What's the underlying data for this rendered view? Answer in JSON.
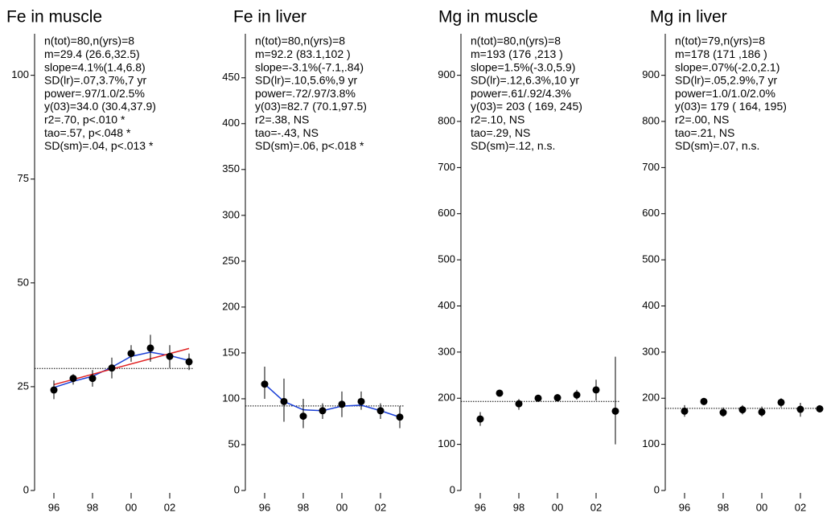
{
  "chart_data": [
    {
      "type": "scatter",
      "title": "Fe in muscle",
      "stats": [
        "n(tot)=80,n(yrs)=8",
        "m=29.4 (26.6,32.5)",
        "slope=4.1%(1.4,6.8)",
        "SD(lr)=.07,3.7%,7 yr",
        "power=.97/1.0/2.5%",
        "y(03)=34.0 (30.4,37.9)",
        "r2=.70, p<.010 *",
        "tao=.57, p<.048 *",
        "SD(sm)=.04, p<.013 *"
      ],
      "x": [
        1996,
        1997,
        1998,
        1999,
        2000,
        2001,
        2002,
        2003
      ],
      "means": [
        24.2,
        27,
        27,
        29.5,
        33,
        34.3,
        32.3,
        31
      ],
      "ci_low": [
        22,
        25.5,
        25,
        27,
        31,
        31,
        29.5,
        29
      ],
      "ci_high": [
        26.5,
        28,
        29,
        32,
        35,
        37.5,
        35,
        33
      ],
      "smooth": [
        24.8,
        26.3,
        27.5,
        29.7,
        32.3,
        33.3,
        32.5,
        31.3
      ],
      "trend_x": [
        1996,
        2003
      ],
      "trend": [
        25.5,
        34.2
      ],
      "reference": 29.4,
      "xlim": [
        1995,
        2003.2
      ],
      "xticks": [
        {
          "value": 1996,
          "label": "96"
        },
        {
          "value": 1998,
          "label": "98"
        },
        {
          "value": 2000,
          "label": "00"
        },
        {
          "value": 2002,
          "label": "02"
        }
      ],
      "ylim": [
        0,
        110
      ],
      "yticks": [
        0,
        25,
        50,
        75,
        100
      ],
      "colors": {
        "mean": "#000000",
        "smooth": "#1a3fd6",
        "trend": "#e02020",
        "reference": "#000000"
      }
    },
    {
      "type": "scatter",
      "title": "Fe in liver",
      "stats": [
        "n(tot)=80,n(yrs)=8",
        "m=92.2 (83.1,102 )",
        "slope=-3.1%(-7.1,.84)",
        "SD(lr)=.10,5.6%,9 yr",
        "power=.72/.97/3.8%",
        "y(03)=82.7 (70.1,97.5)",
        "r2=.38, NS",
        "tao=-.43, NS",
        "SD(sm)=.06, p<.018 *"
      ],
      "x": [
        1996,
        1997,
        1998,
        1999,
        2000,
        2001,
        2002,
        2003
      ],
      "means": [
        116,
        97,
        81,
        87,
        94,
        97,
        87,
        80
      ],
      "ci_low": [
        100,
        75,
        68,
        78,
        80,
        88,
        78,
        68
      ],
      "ci_high": [
        135,
        122,
        100,
        95,
        108,
        108,
        95,
        92
      ],
      "smooth": [
        116,
        97,
        88,
        87,
        92,
        93,
        87,
        80
      ],
      "reference": 92.2,
      "xlim": [
        1995,
        2003.2
      ],
      "xticks": [
        {
          "value": 1996,
          "label": "96"
        },
        {
          "value": 1998,
          "label": "98"
        },
        {
          "value": 2000,
          "label": "00"
        },
        {
          "value": 2002,
          "label": "02"
        }
      ],
      "ylim": [
        0,
        498
      ],
      "yticks": [
        0,
        50,
        100,
        150,
        200,
        250,
        300,
        350,
        400,
        450
      ],
      "colors": {
        "mean": "#000000",
        "smooth": "#1a3fd6",
        "reference": "#000000"
      }
    },
    {
      "type": "scatter",
      "title": "Mg in muscle",
      "stats": [
        "n(tot)=80,n(yrs)=8",
        "m=193  (176 ,213 )",
        "slope=1.5%(-3.0,5.9)",
        "SD(lr)=.12,6.3%,10 yr",
        "power=.61/.92/4.3%",
        "y(03)=  203 (  169,  245)",
        "r2=.10, NS",
        "tao=.29, NS",
        "SD(sm)=.12, n.s."
      ],
      "x": [
        1996,
        1997,
        1998,
        1999,
        2000,
        2001,
        2002,
        2003
      ],
      "means": [
        155,
        211,
        188,
        200,
        201,
        207,
        218,
        172
      ],
      "ci_low": [
        140,
        205,
        175,
        193,
        193,
        197,
        195,
        100
      ],
      "ci_high": [
        170,
        217,
        198,
        207,
        209,
        218,
        240,
        290
      ],
      "reference": 193,
      "xlim": [
        1995,
        2003.2
      ],
      "xticks": [
        {
          "value": 1996,
          "label": "96"
        },
        {
          "value": 1998,
          "label": "98"
        },
        {
          "value": 2000,
          "label": "00"
        },
        {
          "value": 2002,
          "label": "02"
        }
      ],
      "ylim": [
        0,
        990
      ],
      "yticks": [
        0,
        100,
        200,
        300,
        400,
        500,
        600,
        700,
        800,
        900
      ],
      "colors": {
        "mean": "#000000",
        "reference": "#000000"
      }
    },
    {
      "type": "scatter",
      "title": "Mg in liver",
      "stats": [
        "n(tot)=79,n(yrs)=8",
        "m=178  (171 ,186 )",
        "slope=.07%(-2.0,2.1)",
        "SD(lr)=.05,2.9%,7 yr",
        "power=1.0/1.0/2.0%",
        "y(03)=  179 (  164,  195)",
        "r2=.00, NS",
        "tao=.21, NS",
        "SD(sm)=.07, n.s."
      ],
      "x": [
        1996,
        1997,
        1998,
        1999,
        2000,
        2001,
        2002,
        2003
      ],
      "means": [
        172,
        193,
        169,
        175,
        170,
        191,
        176,
        177
      ],
      "ci_low": [
        160,
        185,
        160,
        165,
        160,
        180,
        160,
        170
      ],
      "ci_high": [
        185,
        200,
        180,
        185,
        182,
        200,
        190,
        185
      ],
      "reference": 178,
      "xlim": [
        1995,
        2003.2
      ],
      "xticks": [
        {
          "value": 1996,
          "label": "96"
        },
        {
          "value": 1998,
          "label": "98"
        },
        {
          "value": 2000,
          "label": "00"
        },
        {
          "value": 2002,
          "label": "02"
        }
      ],
      "ylim": [
        0,
        990
      ],
      "yticks": [
        0,
        100,
        200,
        300,
        400,
        500,
        600,
        700,
        800,
        900
      ],
      "colors": {
        "mean": "#000000",
        "reference": "#000000"
      }
    }
  ]
}
